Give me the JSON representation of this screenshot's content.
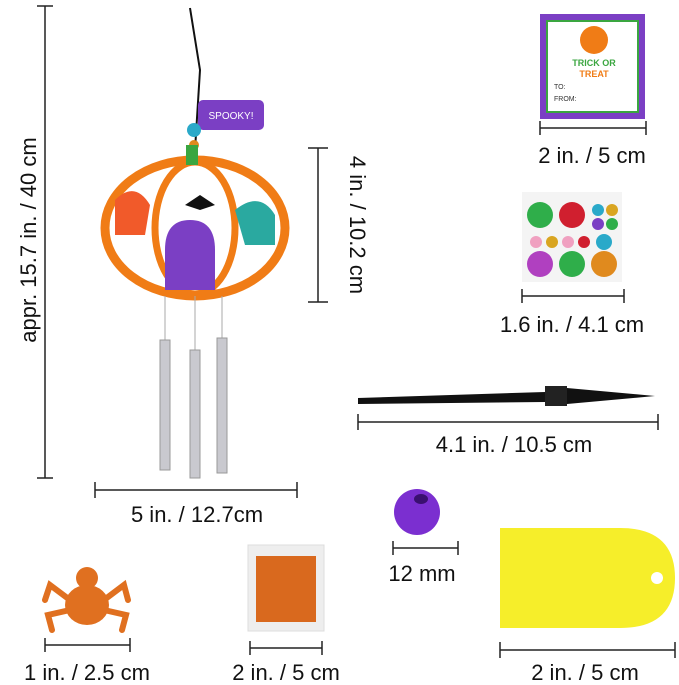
{
  "dimensions": {
    "chime_height": "appr. 15.7 in. / 40 cm",
    "pumpkin_height": "4 in. / 10.2 cm",
    "chime_width": "5 in. / 12.7cm",
    "card": "2 in. / 5 cm",
    "gems": "1.6 in. / 4.1 cm",
    "brush": "4.1 in. / 10.5 cm",
    "bead": "12 mm",
    "spider": "1 in. / 2.5 cm",
    "glitter": "2 in. / 5 cm",
    "tag": "2 in. / 5 cm"
  },
  "tag_text": "SPOOKY!",
  "card_text": {
    "title_1": "TRICK OR",
    "title_2": "TREAT",
    "to": "TO:",
    "from": "FROM:"
  }
}
